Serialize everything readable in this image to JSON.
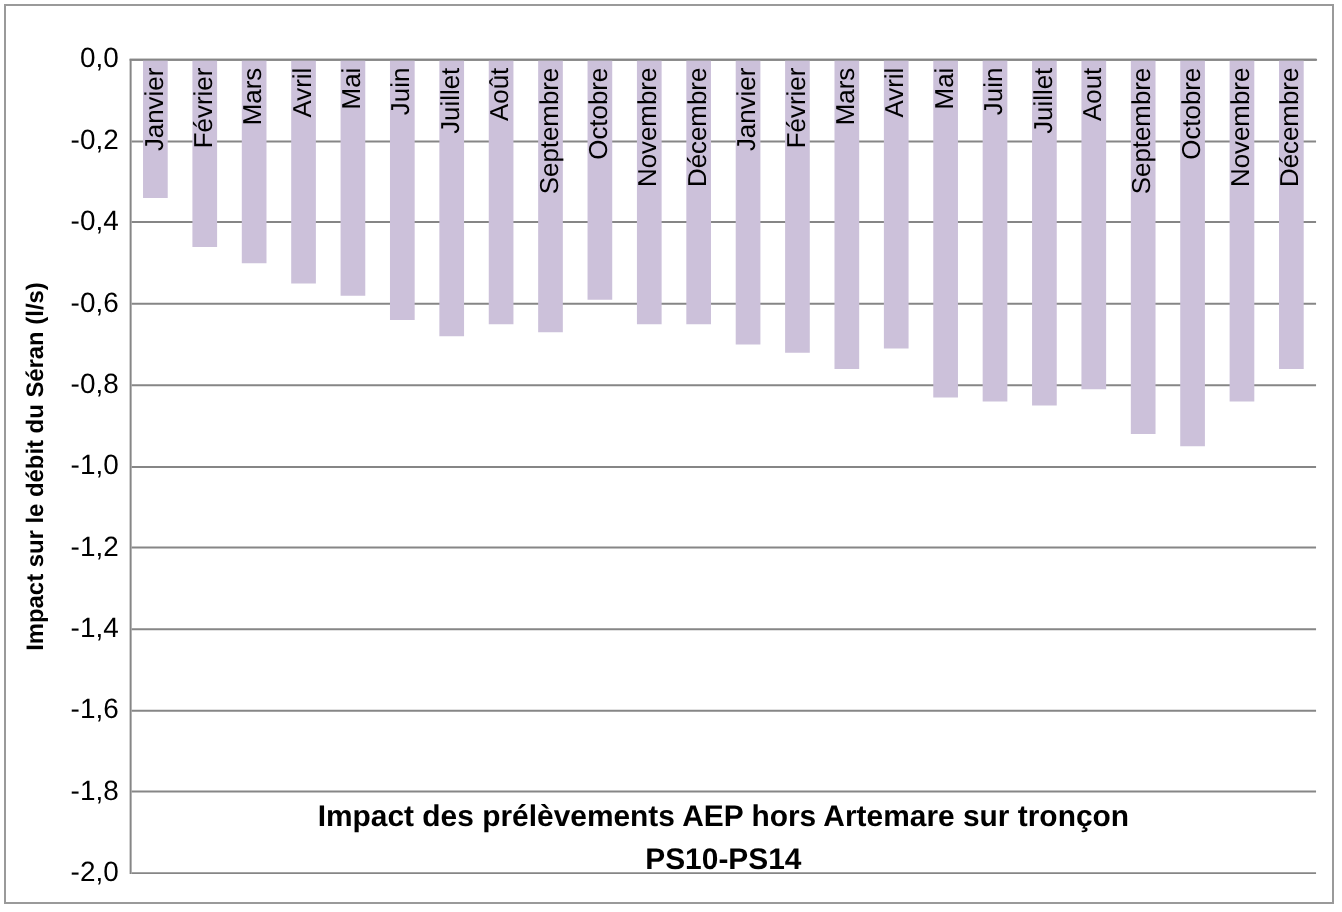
{
  "chart_data": {
    "type": "bar",
    "title": "Impact des prélèvements AEP hors Artemare sur tronçon PS10-PS14",
    "ylabel": "Impact sur le débit du Séran (l/s)",
    "categories": [
      "Janvier",
      "Février",
      "Mars",
      "Avril",
      "Mai",
      "Juin",
      "Juillet",
      "Août",
      "Septembre",
      "Octobre",
      "Novembre",
      "Décembre",
      "Janvier",
      "Février",
      "Mars",
      "Avril",
      "Mai",
      "Juin",
      "Juillet",
      "Aout",
      "Septembre",
      "Octobre",
      "Novembre",
      "Décembre"
    ],
    "values": [
      -0.34,
      -0.46,
      -0.5,
      -0.55,
      -0.58,
      -0.64,
      -0.68,
      -0.65,
      -0.67,
      -0.59,
      -0.65,
      -0.65,
      -0.7,
      -0.72,
      -0.76,
      -0.71,
      -0.83,
      -0.84,
      -0.85,
      -0.81,
      -0.92,
      -0.95,
      -0.84,
      -0.76
    ],
    "color": "#ccc1da",
    "ylim": [
      -2.0,
      0.0
    ],
    "yticks": [
      {
        "value": 0,
        "label": "0,0"
      },
      {
        "value": -0.2,
        "label": "-0,2"
      },
      {
        "value": -0.4,
        "label": "-0,4"
      },
      {
        "value": -0.6,
        "label": "-0,6"
      },
      {
        "value": -0.8,
        "label": "-0,8"
      },
      {
        "value": -1.0,
        "label": "-1,0"
      },
      {
        "value": -1.2,
        "label": "-1,2"
      },
      {
        "value": -1.4,
        "label": "-1,4"
      },
      {
        "value": -1.6,
        "label": "-1,6"
      },
      {
        "value": -1.8,
        "label": "-1,8"
      },
      {
        "value": -2.0,
        "label": "-2,0"
      }
    ],
    "grid": "y"
  }
}
